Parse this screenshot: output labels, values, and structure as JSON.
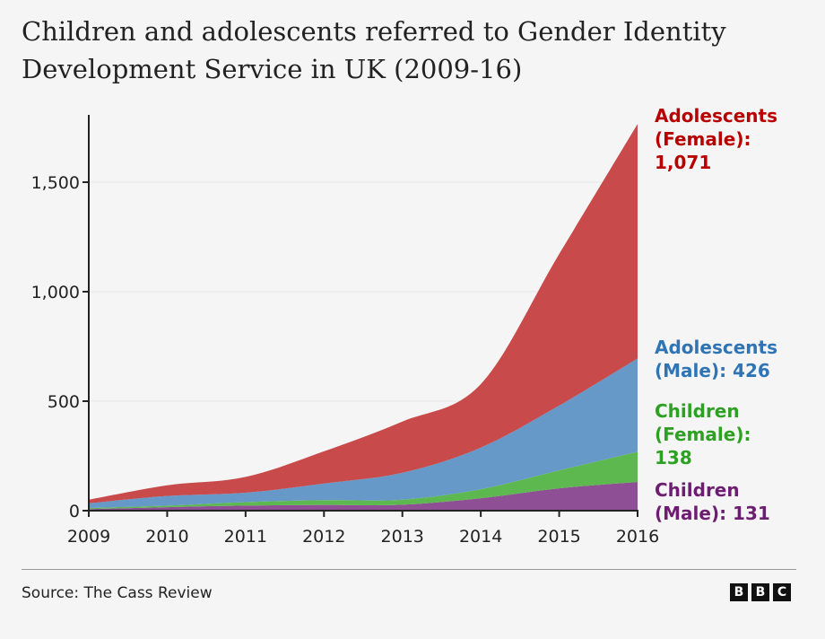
{
  "chart_data": {
    "type": "area",
    "stacked": true,
    "title": "Children and adolescents referred to Gender Identity Development Service in UK (2009-16)",
    "x": [
      2009,
      2010,
      2011,
      2012,
      2013,
      2014,
      2015,
      2016
    ],
    "x_tick_labels": [
      "2009",
      "2010",
      "2011",
      "2012",
      "2013",
      "2014",
      "2015",
      "2016"
    ],
    "y_ticks": [
      0,
      500,
      1000,
      1500
    ],
    "y_tick_labels": [
      "0",
      "500",
      "1,000",
      "1,500"
    ],
    "ylim": [
      0,
      1800
    ],
    "grid": "horizontal",
    "series": [
      {
        "name": "Children (Male)",
        "label_lines": [
          "Children",
          "(Male): 131"
        ],
        "color": "#8e4f94",
        "label_color": "#6e1e70",
        "values": [
          7,
          16,
          23,
          26,
          27,
          57,
          102,
          131
        ]
      },
      {
        "name": "Children (Female)",
        "label_lines": [
          "Children",
          "(Female):",
          "138"
        ],
        "color": "#5cb84f",
        "label_color": "#2ea024",
        "values": [
          5,
          7,
          16,
          22,
          23,
          41,
          82,
          138
        ]
      },
      {
        "name": "Adolescents (Male)",
        "label_lines": [
          "Adolescents",
          "(Male): 426"
        ],
        "color": "#6699c8",
        "label_color": "#2f74b5",
        "values": [
          22,
          44,
          43,
          76,
          123,
          190,
          296,
          426
        ]
      },
      {
        "name": "Adolescents (Female)",
        "label_lines": [
          "Adolescents",
          "(Female):",
          "1,071"
        ],
        "color": "#c84a4a",
        "label_color": "#b80000",
        "values": [
          16,
          49,
          72,
          147,
          234,
          290,
          692,
          1071
        ]
      }
    ]
  },
  "footer": {
    "source": "Source: The Cass Review",
    "logo": "BBC"
  }
}
